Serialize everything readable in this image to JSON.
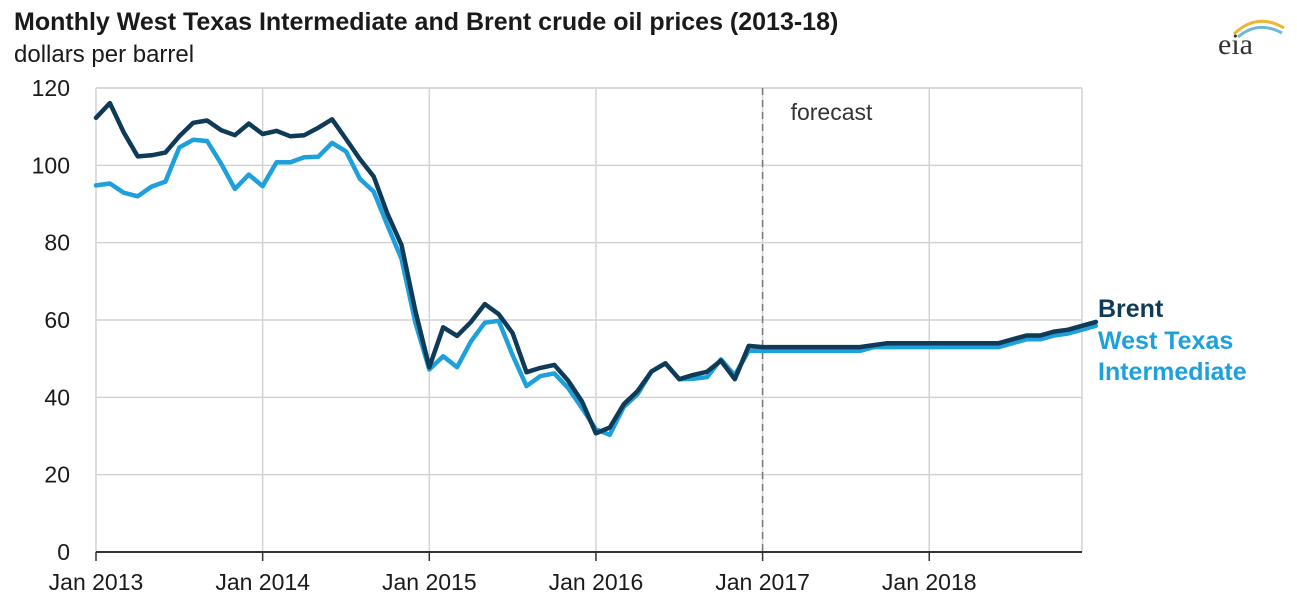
{
  "chart_data": {
    "type": "line",
    "title": "Monthly West Texas Intermediate and Brent crude oil prices (2013-18)",
    "subtitle": "dollars per barrel",
    "xlabel": "",
    "ylabel": "dollars per barrel",
    "ylim": [
      0,
      120
    ],
    "yticks": [
      0,
      20,
      40,
      60,
      80,
      100,
      120
    ],
    "ytick_labels": [
      "0",
      "20",
      "40",
      "60",
      "80",
      "100",
      "120"
    ],
    "xlim": [
      0,
      71
    ],
    "xticks": [
      0,
      12,
      24,
      36,
      48,
      60
    ],
    "xtick_labels": [
      "Jan 2013",
      "Jan 2014",
      "Jan 2015",
      "Jan 2016",
      "Jan 2017",
      "Jan 2018"
    ],
    "x_unit": "months since Jan 2013",
    "grid": true,
    "annotation": {
      "text": "forecast",
      "x": 48
    },
    "series": [
      {
        "name": "Brent",
        "color": "#0f3b57",
        "values": [
          112.3,
          116.1,
          108.5,
          102.3,
          102.6,
          103.3,
          107.5,
          111.0,
          111.6,
          109.1,
          107.8,
          110.8,
          108.1,
          108.9,
          107.5,
          107.8,
          109.7,
          111.9,
          106.8,
          101.6,
          97.1,
          87.4,
          79.4,
          62.3,
          47.8,
          58.1,
          55.9,
          59.5,
          64.1,
          61.5,
          56.6,
          46.5,
          47.6,
          48.4,
          44.3,
          38.9,
          30.7,
          32.2,
          38.2,
          41.6,
          46.7,
          48.8,
          44.7,
          45.8,
          46.6,
          49.5,
          44.7,
          53.3,
          53.0,
          53.0,
          53.0,
          53.0,
          53.0,
          53.0,
          53.0,
          53.0,
          53.5,
          54.0,
          54.0,
          54.0,
          54.0,
          54.0,
          54.0,
          54.0,
          54.0,
          54.0,
          55.0,
          56.0,
          56.0,
          57.0,
          57.5,
          58.5,
          59.5
        ]
      },
      {
        "name": "West Texas Intermediate",
        "color": "#1ea0dc",
        "values": [
          94.8,
          95.3,
          92.9,
          92.0,
          94.5,
          95.8,
          104.6,
          106.6,
          106.3,
          100.5,
          93.9,
          97.6,
          94.6,
          100.8,
          100.8,
          102.1,
          102.2,
          105.8,
          103.6,
          96.5,
          93.2,
          84.4,
          75.8,
          59.3,
          47.2,
          50.6,
          47.8,
          54.5,
          59.3,
          59.8,
          50.9,
          42.9,
          45.5,
          46.2,
          42.4,
          37.2,
          31.7,
          30.3,
          37.5,
          40.8,
          46.7,
          48.8,
          44.7,
          44.8,
          45.2,
          49.8,
          45.7,
          52.0,
          52.0,
          52.0,
          52.0,
          52.0,
          52.0,
          52.0,
          52.0,
          52.0,
          53.0,
          53.0,
          53.0,
          53.0,
          53.0,
          53.0,
          53.0,
          53.0,
          53.0,
          53.0,
          54.0,
          55.0,
          55.0,
          56.0,
          56.5,
          57.5,
          58.5
        ]
      }
    ],
    "legend_lines": [
      "Brent",
      "West Texas",
      "Intermediate"
    ]
  },
  "logo": {
    "text": "eia"
  }
}
